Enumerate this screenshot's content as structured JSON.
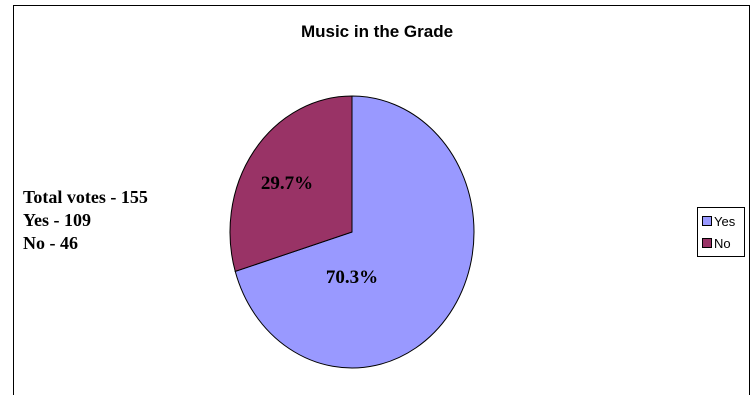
{
  "chart_data": {
    "type": "pie",
    "title": "Music in the Grade",
    "slices": [
      {
        "label": "Yes",
        "value": 109,
        "percent_label": "70.3%",
        "color": "#9999ff"
      },
      {
        "label": "No",
        "value": 46,
        "percent_label": "29.7%",
        "color": "#993366"
      }
    ],
    "legend": "right",
    "annotation": [
      "Total votes - 155",
      "Yes - 109",
      "No - 46"
    ]
  }
}
